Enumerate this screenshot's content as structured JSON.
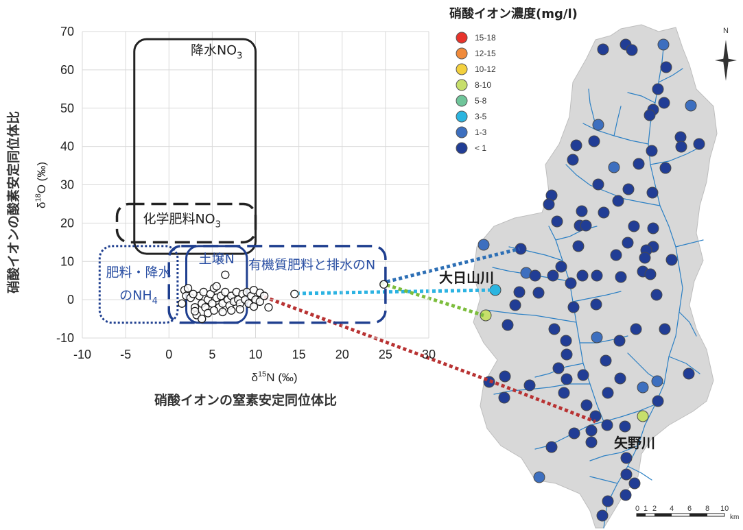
{
  "chart_data": [
    {
      "type": "scatter",
      "title": "",
      "xlabel_base": "δ",
      "xlabel_sup": "15",
      "xlabel_rest": "N (‰)",
      "ylabel_base": "δ",
      "ylabel_sup": "18",
      "ylabel_rest": "O (‰)",
      "x_title": "硝酸イオンの窒素安定同位体比",
      "y_title": "硝酸イオンの酸素安定同位体比",
      "xlim": [
        -10,
        30
      ],
      "ylim": [
        -10,
        70
      ],
      "xticks": [
        -10,
        -5,
        0,
        5,
        10,
        15,
        20,
        25,
        30
      ],
      "yticks": [
        -10,
        0,
        10,
        20,
        30,
        40,
        50,
        60,
        70
      ],
      "grid": true,
      "zones": [
        {
          "label": "降水NO",
          "sub": "3",
          "x": [
            -4,
            10
          ],
          "y": [
            12,
            68
          ],
          "style": "solid",
          "color": "#222222"
        },
        {
          "label": "化学肥料NO",
          "sub": "3",
          "x": [
            -6,
            10
          ],
          "y": [
            15,
            25
          ],
          "style": "dashed",
          "color": "#222222"
        },
        {
          "label": "肥料・降水",
          "label2": "のNH",
          "sub": "4",
          "x": [
            -8,
            1
          ],
          "y": [
            -6,
            14
          ],
          "style": "dotted",
          "color": "#1f3f8f"
        },
        {
          "label": "土壌N",
          "x": [
            2,
            9
          ],
          "y": [
            -6,
            14
          ],
          "style": "solid",
          "color": "#1f3f8f"
        },
        {
          "label": "有機質肥料と排水のN",
          "x": [
            0,
            25
          ],
          "y": [
            -6,
            14
          ],
          "style": "dashed",
          "color": "#1f3f8f"
        }
      ],
      "points": [
        [
          1.8,
          2.5
        ],
        [
          2,
          1
        ],
        [
          1.5,
          -1
        ],
        [
          2.5,
          0.5
        ],
        [
          2.2,
          3
        ],
        [
          3,
          -2
        ],
        [
          3.5,
          1
        ],
        [
          3.2,
          -4
        ],
        [
          3.8,
          -1
        ],
        [
          4,
          2
        ],
        [
          4.5,
          0
        ],
        [
          4.2,
          -2
        ],
        [
          4.8,
          1.5
        ],
        [
          5,
          -1
        ],
        [
          5.2,
          3
        ],
        [
          5.5,
          0.5
        ],
        [
          5.8,
          -2
        ],
        [
          6,
          1
        ],
        [
          6.2,
          -1
        ],
        [
          6.5,
          2
        ],
        [
          6.8,
          0
        ],
        [
          7,
          -1.5
        ],
        [
          7.2,
          1
        ],
        [
          7.5,
          -0.5
        ],
        [
          7.8,
          2
        ],
        [
          8,
          0
        ],
        [
          8.2,
          -1
        ],
        [
          8.5,
          1.5
        ],
        [
          8.8,
          0
        ],
        [
          9,
          2
        ],
        [
          9.2,
          -1
        ],
        [
          9.5,
          1
        ],
        [
          10,
          0
        ],
        [
          10.5,
          -0.5
        ],
        [
          6.5,
          6.5
        ],
        [
          5.5,
          3.5
        ],
        [
          4.5,
          -3.5
        ],
        [
          3,
          -3
        ],
        [
          2.8,
          1.5
        ],
        [
          9.8,
          2.5
        ],
        [
          3.8,
          -5
        ],
        [
          5.2,
          -2.8
        ],
        [
          6.2,
          -3.2
        ],
        [
          7.2,
          -2.8
        ],
        [
          8.2,
          -2.5
        ],
        [
          9.8,
          -1.8
        ],
        [
          10.5,
          1.8
        ],
        [
          11,
          1
        ],
        [
          11.5,
          -2
        ],
        [
          14.5,
          1.5
        ],
        [
          24.8,
          4
        ]
      ]
    },
    {
      "type": "map",
      "title": "硝酸イオン濃度(mg/l)",
      "legend": [
        {
          "label": "15-18",
          "color": "#e8332b"
        },
        {
          "label": "12-15",
          "color": "#f08a3a"
        },
        {
          "label": "10-12",
          "color": "#f3d03e"
        },
        {
          "label": "8-10",
          "color": "#c7df6b"
        },
        {
          "label": "5-8",
          "color": "#6fc59a"
        },
        {
          "label": "3-5",
          "color": "#2bb5e0"
        },
        {
          "label": "1-3",
          "color": "#3d6fbf"
        },
        {
          "label": "< 1",
          "color": "#213d95"
        }
      ],
      "rivers": [
        "大日山川",
        "矢野川"
      ],
      "north": "N",
      "scale_ticks": [
        "0",
        "1",
        "2",
        "4",
        "6",
        "8",
        "10"
      ],
      "scale_unit": "km"
    }
  ]
}
